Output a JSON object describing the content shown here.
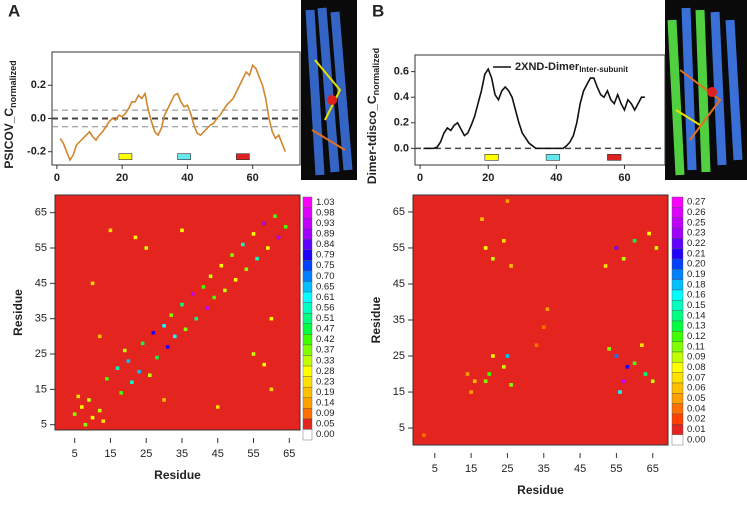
{
  "chart_data": [
    {
      "type": "line",
      "panel": "A",
      "ylabel": "PSICOV_C",
      "ylabel_subscript": "normalized",
      "x": [
        1,
        2,
        3,
        4,
        5,
        6,
        7,
        8,
        9,
        10,
        11,
        12,
        13,
        14,
        15,
        16,
        17,
        18,
        19,
        20,
        21,
        22,
        23,
        24,
        25,
        26,
        27,
        28,
        29,
        30,
        31,
        32,
        33,
        34,
        35,
        36,
        37,
        38,
        39,
        40,
        41,
        42,
        43,
        44,
        45,
        46,
        47,
        48,
        49,
        50,
        51,
        52,
        53,
        54,
        55,
        56,
        57,
        58,
        59,
        60,
        61,
        62,
        63,
        64,
        65,
        66,
        67,
        68,
        69,
        70
      ],
      "series": [
        {
          "color": "#d2862c",
          "values": [
            -0.12,
            -0.15,
            -0.2,
            -0.25,
            -0.22,
            -0.16,
            -0.14,
            -0.12,
            -0.1,
            -0.08,
            -0.11,
            -0.13,
            -0.1,
            -0.08,
            -0.05,
            -0.02,
            0.0,
            -0.01,
            0.02,
            0.01,
            0.03,
            0.06,
            0.1,
            0.1,
            0.14,
            0.12,
            0.15,
            0.05,
            -0.02,
            -0.08,
            -0.1,
            -0.06,
            0.02,
            0.06,
            0.1,
            0.14,
            0.15,
            0.1,
            0.07,
            0.08,
            0.03,
            -0.04,
            -0.09,
            -0.1,
            -0.08,
            -0.06,
            -0.04,
            -0.03,
            0.0,
            0.02,
            0.05,
            0.08,
            0.1,
            0.12,
            0.16,
            0.2,
            0.24,
            0.28,
            0.26,
            0.32,
            0.3,
            0.25,
            0.2,
            0.12,
            0.0,
            -0.08,
            -0.12,
            -0.1,
            -0.15,
            -0.2
          ]
        }
      ],
      "xlim": [
        -1.5,
        74.5
      ],
      "ylim": [
        -0.28,
        0.4
      ],
      "xticks": [
        0,
        20,
        40,
        60
      ],
      "yticks": [
        -0.2,
        {
          "value": 0,
          "label": "0.0"
        },
        0.2
      ],
      "hlines": [
        {
          "y": 0.05,
          "color": "#888888",
          "width": 1
        },
        {
          "y": 0,
          "color": "#444444",
          "width": 2
        },
        {
          "y": -0.05,
          "color": "#888888",
          "width": 1
        }
      ],
      "segments": [
        {
          "start": 19,
          "end": 23,
          "y": -0.23,
          "color": "#ffff00"
        },
        {
          "start": 37,
          "end": 41,
          "y": -0.23,
          "color": "#66e8ee"
        },
        {
          "start": 55,
          "end": 59,
          "y": -0.23,
          "color": "#dd2222"
        }
      ]
    },
    {
      "type": "heatmap",
      "xlabel": "Residue",
      "ylabel": "Residue",
      "xlim": [
        -0.5,
        68
      ],
      "ylim": [
        3.5,
        70
      ],
      "xticks": [
        5,
        15,
        25,
        35,
        45,
        55,
        65
      ],
      "yticks": [
        5,
        15,
        25,
        35,
        45,
        55,
        65
      ],
      "cells": [
        [
          5,
          8,
          0.37
        ],
        [
          8,
          5,
          0.37
        ],
        [
          7,
          10,
          0.28
        ],
        [
          10,
          7,
          0.28
        ],
        [
          9,
          12,
          0.33
        ],
        [
          12,
          9,
          0.33
        ],
        [
          6,
          13,
          0.23
        ],
        [
          13,
          6,
          0.23
        ],
        [
          14,
          18,
          0.42
        ],
        [
          18,
          14,
          0.42
        ],
        [
          17,
          21,
          0.56
        ],
        [
          21,
          17,
          0.56
        ],
        [
          20,
          23,
          0.65
        ],
        [
          23,
          20,
          0.65
        ],
        [
          19,
          26,
          0.33
        ],
        [
          26,
          19,
          0.33
        ],
        [
          24,
          28,
          0.47
        ],
        [
          28,
          24,
          0.47
        ],
        [
          27,
          31,
          0.79
        ],
        [
          31,
          27,
          0.79
        ],
        [
          30,
          33,
          0.61
        ],
        [
          33,
          30,
          0.61
        ],
        [
          32,
          36,
          0.37
        ],
        [
          36,
          32,
          0.37
        ],
        [
          35,
          39,
          0.51
        ],
        [
          39,
          35,
          0.51
        ],
        [
          38,
          42,
          0.93
        ],
        [
          42,
          38,
          0.93
        ],
        [
          41,
          44,
          0.42
        ],
        [
          44,
          41,
          0.42
        ],
        [
          43,
          47,
          0.33
        ],
        [
          47,
          43,
          0.33
        ],
        [
          46,
          50,
          0.28
        ],
        [
          50,
          46,
          0.28
        ],
        [
          49,
          53,
          0.37
        ],
        [
          53,
          49,
          0.37
        ],
        [
          52,
          56,
          0.56
        ],
        [
          56,
          52,
          0.56
        ],
        [
          55,
          59,
          0.28
        ],
        [
          59,
          55,
          0.28
        ],
        [
          58,
          62,
          0.89
        ],
        [
          62,
          58,
          0.89
        ],
        [
          61,
          64,
          0.42
        ],
        [
          64,
          61,
          0.42
        ],
        [
          22,
          58,
          0.28
        ],
        [
          58,
          22,
          0.28
        ],
        [
          25,
          55,
          0.33
        ],
        [
          55,
          25,
          0.33
        ],
        [
          15,
          60,
          0.23
        ],
        [
          60,
          15,
          0.23
        ],
        [
          10,
          45,
          0.23
        ],
        [
          45,
          10,
          0.23
        ],
        [
          35,
          60,
          0.28
        ],
        [
          60,
          35,
          0.28
        ],
        [
          12,
          30,
          0.19
        ],
        [
          30,
          12,
          0.19
        ]
      ],
      "colorbar": [
        {
          "value": 1.03,
          "label": "1.03",
          "color": "#ff00ff"
        },
        {
          "value": 0.98,
          "label": "0.98",
          "color": "#e000ff"
        },
        {
          "value": 0.93,
          "label": "0.93",
          "color": "#c000ff"
        },
        {
          "value": 0.89,
          "label": "0.89",
          "color": "#a000ff"
        },
        {
          "value": 0.84,
          "label": "0.84",
          "color": "#6000ff"
        },
        {
          "value": 0.79,
          "label": "0.79",
          "color": "#2000ff"
        },
        {
          "value": 0.75,
          "label": "0.75",
          "color": "#0040ff"
        },
        {
          "value": 0.7,
          "label": "0.70",
          "color": "#0080ff"
        },
        {
          "value": 0.65,
          "label": "0.65",
          "color": "#00c0ff"
        },
        {
          "value": 0.61,
          "label": "0.61",
          "color": "#00ffff"
        },
        {
          "value": 0.56,
          "label": "0.56",
          "color": "#00ffc0"
        },
        {
          "value": 0.51,
          "label": "0.51",
          "color": "#00ff80"
        },
        {
          "value": 0.47,
          "label": "0.47",
          "color": "#00ff40"
        },
        {
          "value": 0.42,
          "label": "0.42",
          "color": "#40ff00"
        },
        {
          "value": 0.37,
          "label": "0.37",
          "color": "#80ff00"
        },
        {
          "value": 0.33,
          "label": "0.33",
          "color": "#c0ff00"
        },
        {
          "value": 0.28,
          "label": "0.28",
          "color": "#ffff00"
        },
        {
          "value": 0.23,
          "label": "0.23",
          "color": "#ffe000"
        },
        {
          "value": 0.19,
          "label": "0.19",
          "color": "#ffc000"
        },
        {
          "value": 0.14,
          "label": "0.14",
          "color": "#ffa000"
        },
        {
          "value": 0.09,
          "label": "0.09",
          "color": "#ff7000"
        },
        {
          "value": 0.05,
          "label": "0.05",
          "color": "#e3241f"
        },
        {
          "value": 0,
          "label": "0.00",
          "color": "#ffffff"
        }
      ]
    },
    {
      "type": "line",
      "panel": "B",
      "ylabel": "Dimer-tdisco_C",
      "ylabel_subscript": "normalized",
      "x": [
        1,
        2,
        3,
        4,
        5,
        6,
        7,
        8,
        9,
        10,
        11,
        12,
        13,
        14,
        15,
        16,
        17,
        18,
        19,
        20,
        21,
        22,
        23,
        24,
        25,
        26,
        27,
        28,
        29,
        30,
        31,
        32,
        33,
        34,
        35,
        36,
        37,
        38,
        39,
        40,
        41,
        42,
        43,
        44,
        45,
        46,
        47,
        48,
        49,
        50,
        51,
        52,
        53,
        54,
        55,
        56,
        57,
        58,
        59,
        60,
        61,
        62,
        63,
        64,
        65,
        66
      ],
      "series": [
        {
          "name": "2XND-Dimer",
          "name_subscript": "Inter-subunit",
          "color": "#111111",
          "values": [
            0,
            0,
            0,
            0,
            0.01,
            0.05,
            0.12,
            0.16,
            0.14,
            0.18,
            0.2,
            0.15,
            0.1,
            0.12,
            0.18,
            0.25,
            0.35,
            0.45,
            0.58,
            0.62,
            0.55,
            0.42,
            0.38,
            0.45,
            0.48,
            0.45,
            0.4,
            0.3,
            0.2,
            0.12,
            0.08,
            0.04,
            0.02,
            0,
            0,
            0,
            0,
            0,
            0,
            0,
            0,
            0,
            0.02,
            0.05,
            0.1,
            0.2,
            0.35,
            0.45,
            0.5,
            0.55,
            0.55,
            0.48,
            0.42,
            0.4,
            0.45,
            0.38,
            0.35,
            0.42,
            0.35,
            0.3,
            0.38,
            0.35,
            0.3,
            0.35,
            0.4,
            0.4
          ]
        }
      ],
      "xlim": [
        -1.5,
        71.9
      ],
      "ylim": [
        -0.13,
        0.73
      ],
      "xticks": [
        0,
        20,
        40,
        60
      ],
      "yticks": [
        {
          "value": 0,
          "label": "0.0"
        },
        0.2,
        0.4,
        0.6
      ],
      "hlines": [
        {
          "y": 0,
          "color": "#444444",
          "width": 1.5
        }
      ],
      "segments": [
        {
          "start": 19,
          "end": 23,
          "y": -0.07,
          "color": "#ffff00"
        },
        {
          "start": 37,
          "end": 41,
          "y": -0.07,
          "color": "#66e8ee"
        },
        {
          "start": 55,
          "end": 59,
          "y": -0.07,
          "color": "#dd2222"
        }
      ]
    },
    {
      "type": "heatmap",
      "xlabel": "Residue",
      "ylabel": "Residue",
      "xlim": [
        -1,
        69.2
      ],
      "ylim": [
        0.3,
        69.7
      ],
      "xticks": [
        5,
        15,
        25,
        35,
        45,
        55,
        65
      ],
      "yticks": [
        5,
        15,
        25,
        35,
        45,
        55,
        65
      ],
      "cells": [
        [
          19,
          18,
          0.11
        ],
        [
          20,
          20,
          0.12
        ],
        [
          25,
          25,
          0.18
        ],
        [
          24,
          22,
          0.09
        ],
        [
          21,
          25,
          0.08
        ],
        [
          26,
          17,
          0.11
        ],
        [
          55,
          55,
          0.22
        ],
        [
          57,
          52,
          0.09
        ],
        [
          60,
          57,
          0.13
        ],
        [
          63,
          20,
          0.14
        ],
        [
          55,
          25,
          0.19
        ],
        [
          56,
          15,
          0.16
        ],
        [
          60,
          23,
          0.12
        ],
        [
          65,
          18,
          0.09
        ],
        [
          64,
          59,
          0.08
        ],
        [
          52,
          50,
          0.07
        ],
        [
          19,
          55,
          0.08
        ],
        [
          21,
          52,
          0.1
        ],
        [
          24,
          57,
          0.07
        ],
        [
          26,
          50,
          0.06
        ],
        [
          14,
          20,
          0.05
        ],
        [
          16,
          18,
          0.06
        ],
        [
          15,
          15,
          0.05
        ],
        [
          35,
          33,
          0.04
        ],
        [
          36,
          38,
          0.05
        ],
        [
          33,
          28,
          0.04
        ],
        [
          2,
          3,
          0.04
        ],
        [
          57,
          18,
          0.25
        ],
        [
          58,
          22,
          0.21
        ],
        [
          53,
          27,
          0.11
        ],
        [
          62,
          28,
          0.07
        ],
        [
          66,
          55,
          0.09
        ],
        [
          18,
          63,
          0.06
        ],
        [
          25,
          68,
          0.05
        ]
      ],
      "colorbar": [
        {
          "value": 0.27,
          "label": "0.27",
          "color": "#ff00ff"
        },
        {
          "value": 0.26,
          "label": "0.26",
          "color": "#e000ff"
        },
        {
          "value": 0.25,
          "label": "0.25",
          "color": "#c000ff"
        },
        {
          "value": 0.23,
          "label": "0.23",
          "color": "#a000ff"
        },
        {
          "value": 0.22,
          "label": "0.22",
          "color": "#6000ff"
        },
        {
          "value": 0.21,
          "label": "0.21",
          "color": "#2000ff"
        },
        {
          "value": 0.2,
          "label": "0.20",
          "color": "#0040ff"
        },
        {
          "value": 0.19,
          "label": "0.19",
          "color": "#0080ff"
        },
        {
          "value": 0.18,
          "label": "0.18",
          "color": "#00c0ff"
        },
        {
          "value": 0.16,
          "label": "0.16",
          "color": "#00ffff"
        },
        {
          "value": 0.15,
          "label": "0.15",
          "color": "#00ffc0"
        },
        {
          "value": 0.14,
          "label": "0.14",
          "color": "#00ff80"
        },
        {
          "value": 0.13,
          "label": "0.13",
          "color": "#00ff40"
        },
        {
          "value": 0.12,
          "label": "0.12",
          "color": "#40ff00"
        },
        {
          "value": 0.11,
          "label": "0.11",
          "color": "#80ff00"
        },
        {
          "value": 0.09,
          "label": "0.09",
          "color": "#c0ff00"
        },
        {
          "value": 0.08,
          "label": "0.08",
          "color": "#ffff00"
        },
        {
          "value": 0.07,
          "label": "0.07",
          "color": "#ffe000"
        },
        {
          "value": 0.06,
          "label": "0.06",
          "color": "#ffc000"
        },
        {
          "value": 0.05,
          "label": "0.05",
          "color": "#ffa000"
        },
        {
          "value": 0.04,
          "label": "0.04",
          "color": "#ff7000"
        },
        {
          "value": 0.02,
          "label": "0.02",
          "color": "#ff4000"
        },
        {
          "value": 0.01,
          "label": "0.01",
          "color": "#e3241f"
        },
        {
          "value": 0,
          "label": "0.00",
          "color": "#ffffff"
        }
      ]
    }
  ]
}
